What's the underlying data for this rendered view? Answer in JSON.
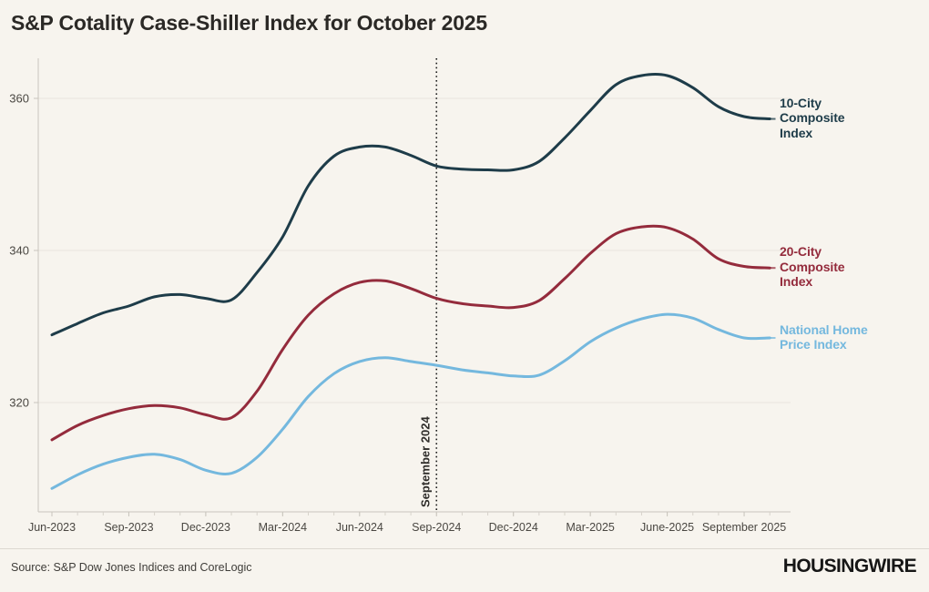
{
  "title": "S&P Cotality Case-Shiller Index for October 2025",
  "footer": {
    "source": "Source: S&P Dow Jones Indices and CoreLogic",
    "logo": "HOUSINGWIRE"
  },
  "colors": {
    "background": "#f7f4ee",
    "grid": "#e8e4dd",
    "axis": "#c9c5bd",
    "tick_text": "#4a4742",
    "annotation_line": "#1c1c1c",
    "series_10city": "#1e3c49",
    "series_20city": "#942b3c",
    "series_national": "#74b8de"
  },
  "annotation": {
    "label": "September 2024",
    "x_index": 15
  },
  "end_labels": [
    {
      "series": "10-City Composite Index",
      "lines": [
        "10-City",
        "Composite",
        "Index"
      ]
    },
    {
      "series": "20-City Composite Index",
      "lines": [
        "20-City",
        "Composite",
        "Index"
      ]
    },
    {
      "series": "National Home Price Index",
      "lines": [
        "National Home",
        "Price Index"
      ]
    }
  ],
  "chart_data": {
    "type": "line",
    "x": [
      "Jun-2023",
      "Jul-2023",
      "Aug-2023",
      "Sep-2023",
      "Oct-2023",
      "Nov-2023",
      "Dec-2023",
      "Jan-2024",
      "Feb-2024",
      "Mar-2024",
      "Apr-2024",
      "May-2024",
      "Jun-2024",
      "Jul-2024",
      "Aug-2024",
      "Sep-2024",
      "Oct-2024",
      "Nov-2024",
      "Dec-2024",
      "Jan-2025",
      "Feb-2025",
      "Mar-2025",
      "Apr-2025",
      "May-2025",
      "Jun-2025",
      "Jul-2025",
      "Aug-2025",
      "Sep-2025",
      "Oct-2025"
    ],
    "x_tick_indices": [
      0,
      3,
      6,
      9,
      12,
      15,
      18,
      21,
      24,
      27
    ],
    "x_tick_labels": [
      "Jun-2023",
      "Sep-2023",
      "Dec-2023",
      "Mar-2024",
      "Jun-2024",
      "Sep-2024",
      "Dec-2024",
      "Mar-2025",
      "June-2025",
      "September 2025"
    ],
    "yticks": [
      320,
      340,
      360
    ],
    "ylim": [
      306,
      365
    ],
    "grid": "horizontal-only",
    "legend_position": "right-of-line-ends",
    "series": [
      {
        "name": "10-City Composite Index",
        "color": "#1e3c49",
        "values": [
          328.9,
          330.4,
          331.8,
          332.7,
          333.9,
          334.2,
          333.7,
          333.5,
          337.1,
          341.8,
          348.5,
          352.4,
          353.6,
          353.6,
          352.5,
          351.1,
          350.7,
          350.6,
          350.6,
          351.7,
          354.8,
          358.4,
          361.8,
          363.0,
          363.0,
          361.4,
          358.9,
          357.6,
          357.3
        ]
      },
      {
        "name": "20-City Composite Index",
        "color": "#942b3c",
        "values": [
          315.1,
          317.0,
          318.3,
          319.2,
          319.6,
          319.3,
          318.4,
          318.0,
          321.5,
          327.0,
          331.5,
          334.3,
          335.8,
          336.0,
          335.0,
          333.7,
          333.0,
          332.7,
          332.5,
          333.4,
          336.3,
          339.6,
          342.2,
          343.1,
          343.0,
          341.5,
          338.9,
          337.9,
          337.7
        ]
      },
      {
        "name": "National Home Price Index",
        "color": "#74b8de",
        "values": [
          308.7,
          310.5,
          311.9,
          312.8,
          313.2,
          312.5,
          311.1,
          310.7,
          312.8,
          316.5,
          320.8,
          323.8,
          325.4,
          325.9,
          325.4,
          324.9,
          324.3,
          323.9,
          323.5,
          323.6,
          325.5,
          328.0,
          329.8,
          331.0,
          331.6,
          331.1,
          329.6,
          328.5,
          328.5
        ]
      }
    ]
  }
}
